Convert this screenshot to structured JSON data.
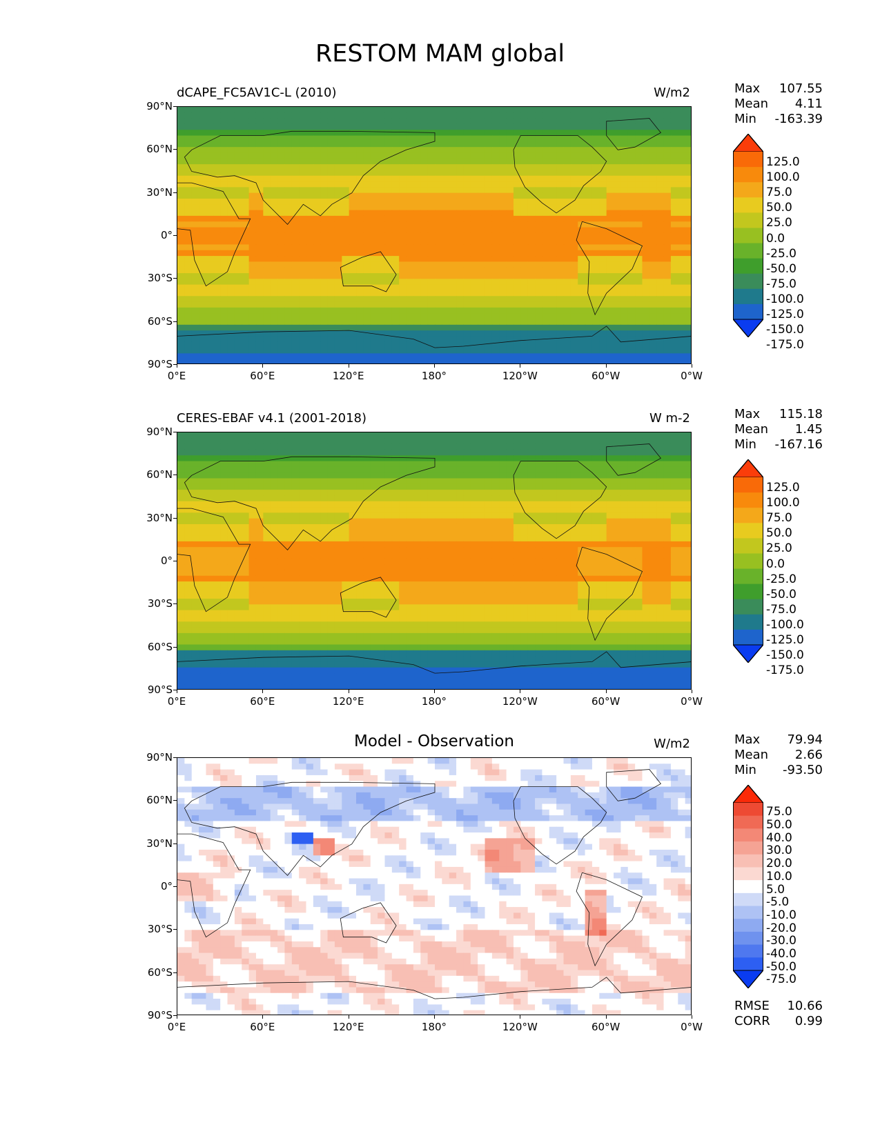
{
  "title": "RESTOM MAM global",
  "axes": {
    "lat_ticks": [
      "90°N",
      "60°N",
      "30°N",
      "0°",
      "30°S",
      "60°S",
      "90°S"
    ],
    "lon_ticks": [
      "0°E",
      "60°E",
      "120°E",
      "180°",
      "120°W",
      "60°W",
      "0°W"
    ]
  },
  "colors": {
    "seq": [
      "#0a3cf0",
      "#1e64cc",
      "#1f7a8c",
      "#3a8c5a",
      "#3f9e2c",
      "#69b22a",
      "#98c021",
      "#c2c71e",
      "#e8cb1f",
      "#f4a81a",
      "#f88a0c",
      "#f96a08",
      "#fb3d0a"
    ],
    "div": [
      "#0a3cf0",
      "#2d5ff2",
      "#4f78ef",
      "#6f92ee",
      "#8eaaf1",
      "#aec2f4",
      "#cfdaf7",
      "#ffffff",
      "#fbd9d2",
      "#f8bfb4",
      "#f5a394",
      "#f38876",
      "#f06a55",
      "#ee4a33",
      "#fb2a08"
    ]
  },
  "panels": [
    {
      "left_title": "dCAPE_FC5AV1C-L (2010)",
      "center_title": "",
      "units": "W/m2",
      "stats": [
        [
          "Max",
          "107.55"
        ],
        [
          "Mean",
          "4.11"
        ],
        [
          "Min",
          "-163.39"
        ]
      ],
      "extra_stats": [],
      "levels": [
        "125.0",
        "100.0",
        "75.0",
        "50.0",
        "25.0",
        "0.0",
        "-25.0",
        "-50.0",
        "-75.0",
        "-100.0",
        "-125.0",
        "-150.0",
        "-175.0"
      ]
    },
    {
      "left_title": "CERES-EBAF v4.1 (2001-2018)",
      "center_title": "",
      "units": "W m-2",
      "stats": [
        [
          "Max",
          "115.18"
        ],
        [
          "Mean",
          "1.45"
        ],
        [
          "Min",
          "-167.16"
        ]
      ],
      "extra_stats": [],
      "levels": [
        "125.0",
        "100.0",
        "75.0",
        "50.0",
        "25.0",
        "0.0",
        "-25.0",
        "-50.0",
        "-75.0",
        "-100.0",
        "-125.0",
        "-150.0",
        "-175.0"
      ]
    },
    {
      "left_title": "",
      "center_title": "Model - Observation",
      "units": "W/m2",
      "stats": [
        [
          "Max",
          "79.94"
        ],
        [
          "Mean",
          "2.66"
        ],
        [
          "Min",
          "-93.50"
        ]
      ],
      "extra_stats": [
        [
          "RMSE",
          "10.66"
        ],
        [
          "CORR",
          "0.99"
        ]
      ],
      "levels": [
        "75.0",
        "50.0",
        "40.0",
        "30.0",
        "20.0",
        "10.0",
        "5.0",
        "-5.0",
        "-10.0",
        "-20.0",
        "-30.0",
        "-40.0",
        "-50.0",
        "-75.0"
      ]
    }
  ]
}
